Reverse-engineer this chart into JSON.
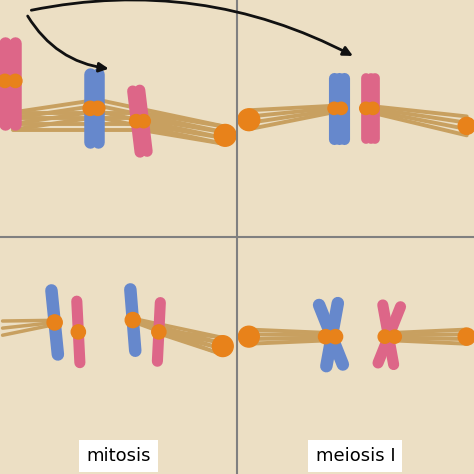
{
  "bg_color": "#ecdfc4",
  "blue_chr": "#6688cc",
  "pink_chr": "#dd6688",
  "orange_dot": "#e8821a",
  "spindle_color": "#c8a060",
  "arrow_color": "#111111",
  "label_mitosis": "mitosis",
  "label_meiosis": "meiosis I",
  "label_fontsize": 13,
  "fig_width": 4.74,
  "fig_height": 4.74,
  "dpi": 100
}
